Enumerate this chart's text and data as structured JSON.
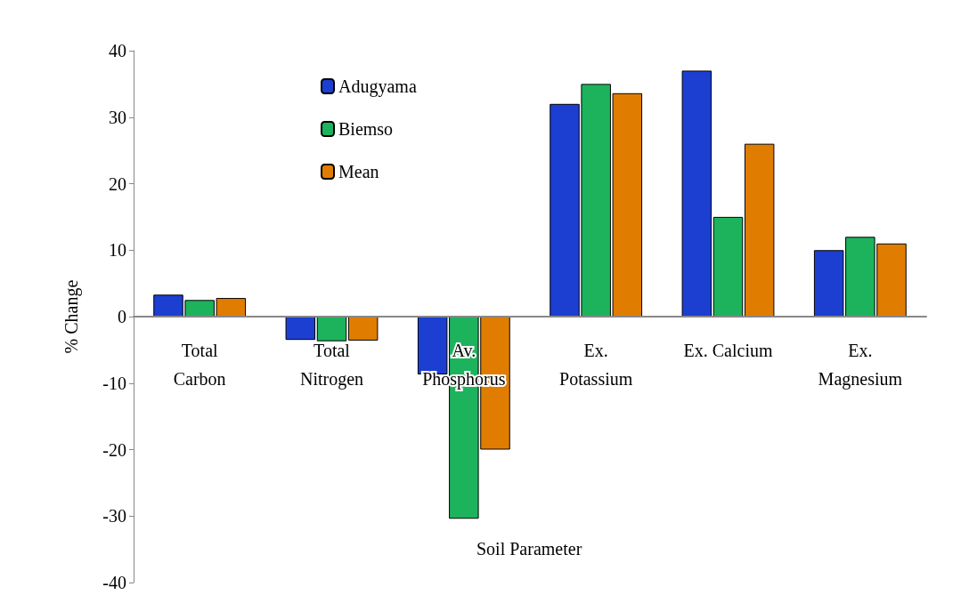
{
  "chart_data": {
    "type": "bar",
    "annotations": [
      "Soil Parameter"
    ],
    "ylabel": "% Change",
    "categories": [
      "Total\nCarbon",
      "Total\nNitrogen",
      "Av.\nPhosphorus",
      "Ex.\nPotassium",
      "Ex. Calcium",
      "Ex.\nMagnesium"
    ],
    "series": [
      {
        "name": "Adugyama",
        "color": "#1c3fd1",
        "values": [
          3.3,
          -3.5,
          -8.7,
          32,
          37,
          10
        ]
      },
      {
        "name": "Biemso",
        "color": "#1db35c",
        "values": [
          2.5,
          -3.7,
          -30.4,
          35,
          15,
          12
        ]
      },
      {
        "name": "Mean",
        "color": "#e07d00",
        "values": [
          2.8,
          -3.6,
          -20,
          33.6,
          26,
          11
        ]
      }
    ],
    "ylim": [
      -40,
      40
    ],
    "yticks": [
      -40,
      -30,
      -20,
      -10,
      0,
      10,
      20,
      30,
      40
    ],
    "grid": false,
    "legend": "top left"
  }
}
